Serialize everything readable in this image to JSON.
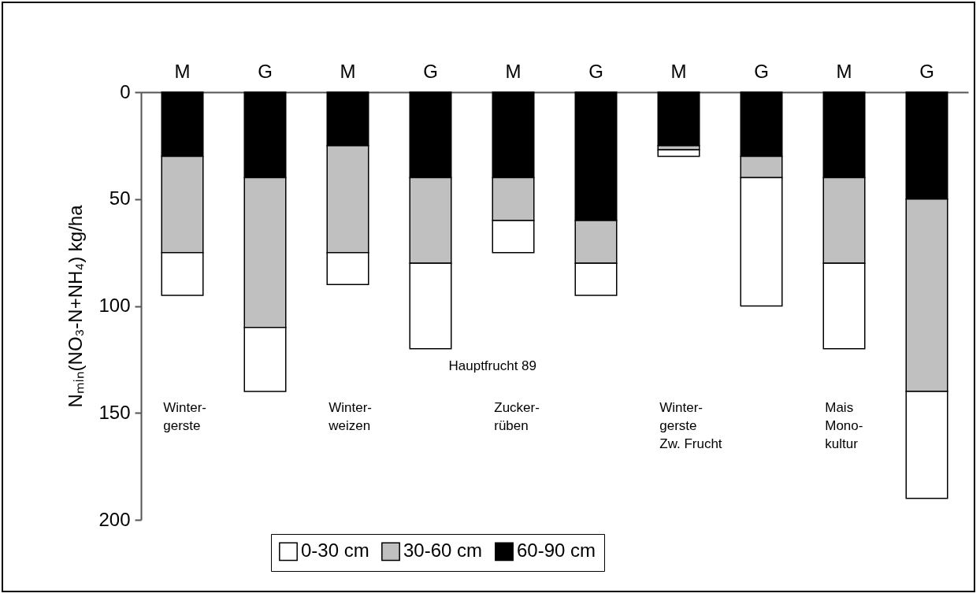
{
  "chart_data": {
    "type": "bar",
    "stacked": true,
    "categories": [
      "M",
      "G",
      "M",
      "G",
      "M",
      "G",
      "M",
      "G",
      "M",
      "G"
    ],
    "series": [
      {
        "name": "60-90 cm",
        "color": "#000000",
        "values": [
          30,
          40,
          25,
          40,
          40,
          60,
          25,
          30,
          40,
          50
        ]
      },
      {
        "name": "30-60 cm",
        "color": "#c0c0c0",
        "values": [
          45,
          70,
          50,
          40,
          20,
          20,
          2,
          10,
          40,
          90
        ]
      },
      {
        "name": "0-30 cm",
        "color": "#ffffff",
        "values": [
          20,
          30,
          15,
          40,
          15,
          15,
          3,
          60,
          40,
          50
        ]
      }
    ],
    "ylabel": "Nₘᵢₙ(NO₃-N+NH₄) kg/ha",
    "ylim": [
      200,
      0
    ],
    "yticks": [
      0,
      50,
      100,
      150,
      200
    ],
    "grid": false,
    "legend": "bottom",
    "annotations": [
      "Hauptfrucht 89",
      "Winter-\ngerste",
      "Winter-\nweizen",
      "Zucker-\nrüben",
      "Winter-\ngerste\nZw. Frucht",
      "Mais\nMono-\nkultur"
    ]
  }
}
